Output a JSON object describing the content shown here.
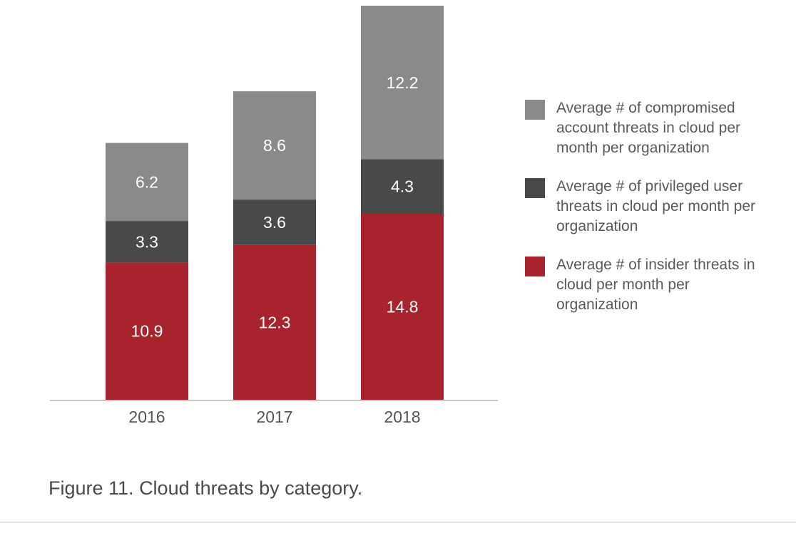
{
  "chart_data": {
    "type": "bar",
    "stacked": true,
    "categories": [
      "2016",
      "2017",
      "2018"
    ],
    "series": [
      {
        "name": "Average # of insider threats in cloud per month per organization",
        "color": "#a8232b",
        "values": [
          10.9,
          12.3,
          14.8
        ]
      },
      {
        "name": "Average # of privileged user threats in cloud per month per organization",
        "color": "#47494b",
        "values": [
          3.3,
          3.6,
          4.3
        ]
      },
      {
        "name": "Average # of compromised account threats in cloud per month per organization",
        "color": "#8a8a8a",
        "values": [
          6.2,
          8.6,
          12.2
        ]
      }
    ],
    "data_labels": [
      [
        "10.9",
        "12.3",
        "14.8"
      ],
      [
        "3.3",
        "3.6",
        "4.3"
      ],
      [
        "6.2",
        "8.6",
        "12.2"
      ]
    ],
    "ylim": [
      0,
      31.3
    ],
    "grid": false,
    "legend_position": "right",
    "xlabel": "",
    "ylabel": ""
  },
  "legend": [
    {
      "label": "Average # of compromised account threats in cloud per month per organization",
      "color": "#8a8a8a"
    },
    {
      "label": "Average # of privileged user threats in cloud per month per organization",
      "color": "#47494b"
    },
    {
      "label": "Average # of insider threats in cloud per month per organization",
      "color": "#a8232b"
    }
  ],
  "caption": "Figure 11. Cloud threats by category."
}
